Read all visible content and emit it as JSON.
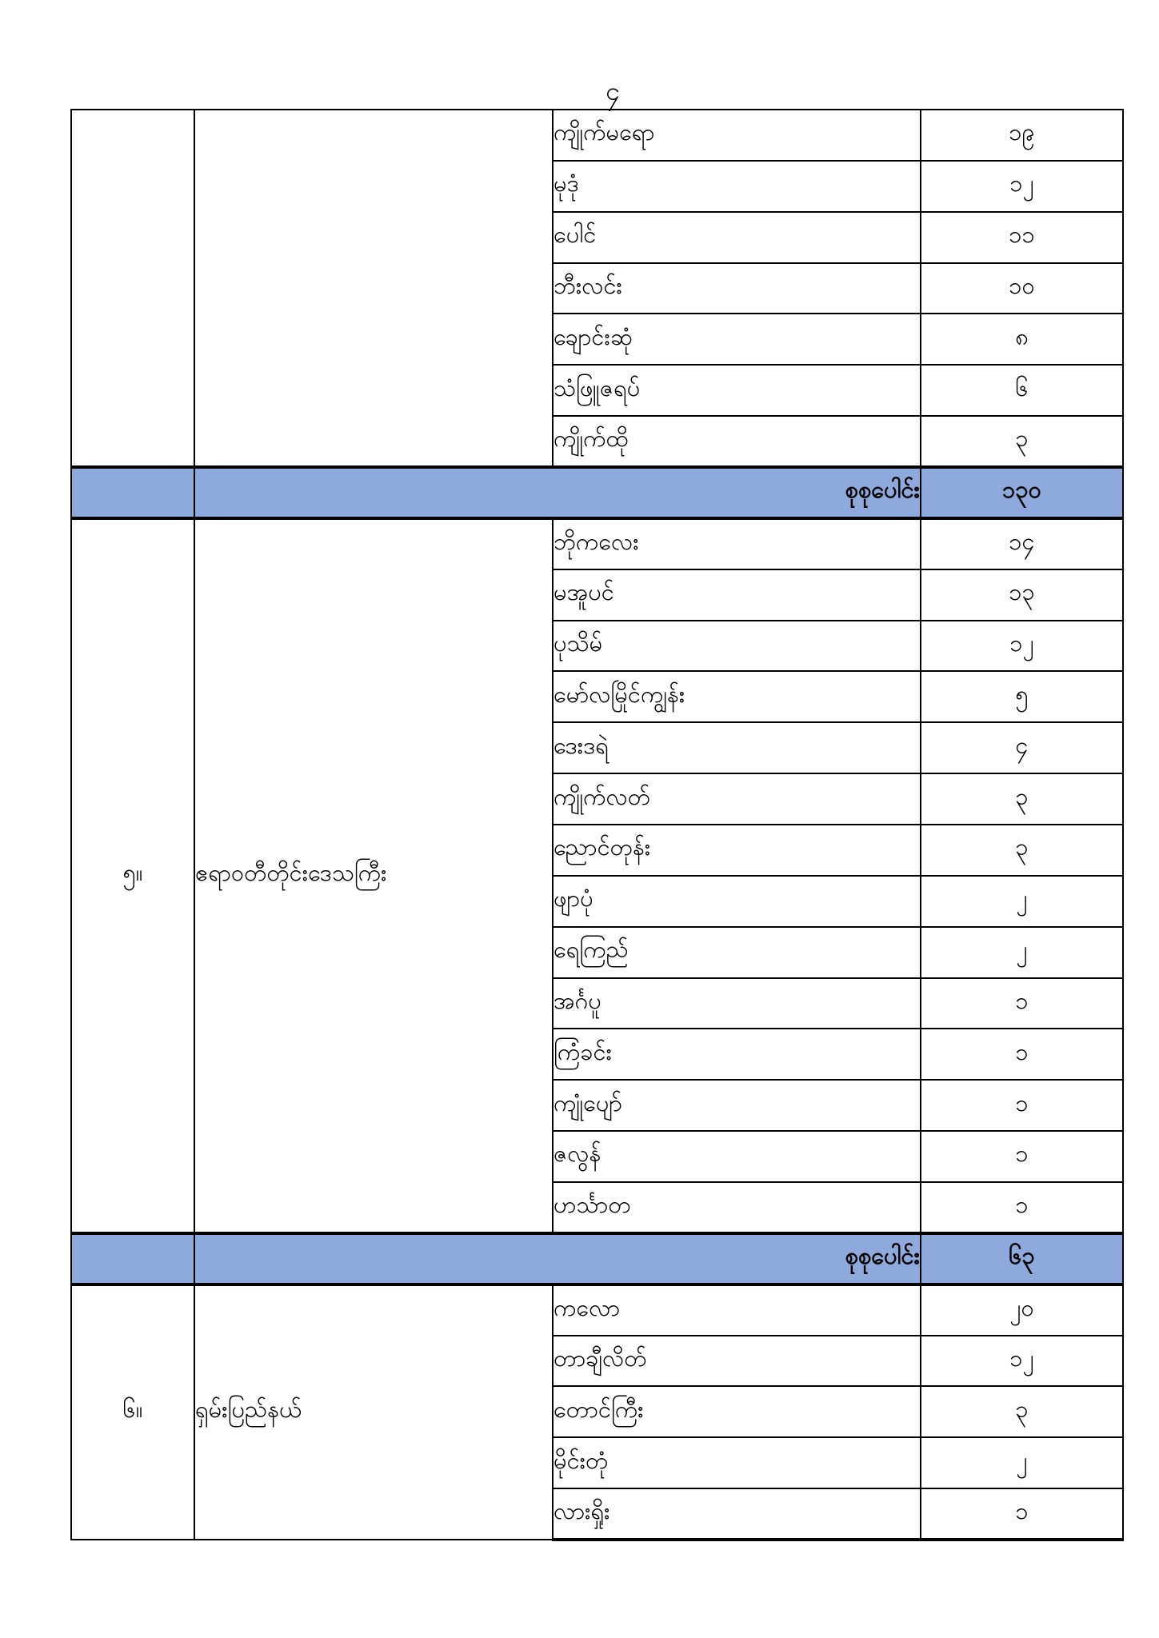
{
  "page": {
    "number": "၄"
  },
  "colors": {
    "total_row_bg": "#8EAADC",
    "border": "#000000",
    "text": "#000000",
    "page_bg": "#ffffff"
  },
  "table": {
    "total_label": "စုစုပေါင်း",
    "columns": [
      "section-number",
      "region-name",
      "township-name",
      "count"
    ],
    "sections": [
      {
        "no": "",
        "region": "",
        "rows": [
          {
            "township": "ကျိုက်မရော",
            "count": "၁၉"
          },
          {
            "township": "မုဒုံ",
            "count": "၁၂"
          },
          {
            "township": "ပေါင်",
            "count": "၁၁"
          },
          {
            "township": "ဘီးလင်း",
            "count": "၁၀"
          },
          {
            "township": "ချောင်းဆုံ",
            "count": "၈"
          },
          {
            "township": "သံဖြူဇရပ်",
            "count": "၆"
          },
          {
            "township": "ကျိုက်ထို",
            "count": "၃"
          }
        ],
        "total": "၁၃၀"
      },
      {
        "no": "၅။",
        "region": "ဧရာဝတီတိုင်းဒေသကြီး",
        "rows": [
          {
            "township": "ဘိုကလေး",
            "count": "၁၄"
          },
          {
            "township": "မအူပင်",
            "count": "၁၃"
          },
          {
            "township": "ပုသိမ်",
            "count": "၁၂"
          },
          {
            "township": "မော်လမြိုင်ကျွန်း",
            "count": "၅"
          },
          {
            "township": "ဒေးဒရဲ",
            "count": "၄"
          },
          {
            "township": "ကျိုက်လတ်",
            "count": "၃"
          },
          {
            "township": "ညောင်တုန်း",
            "count": "၃"
          },
          {
            "township": "ဖျာပုံ",
            "count": "၂"
          },
          {
            "township": "ရေကြည်",
            "count": "၂"
          },
          {
            "township": "အင်္ဂပူ",
            "count": "၁"
          },
          {
            "township": "ကြံခင်း",
            "count": "၁"
          },
          {
            "township": "ကျုံပျော်",
            "count": "၁"
          },
          {
            "township": "ဇလွန်",
            "count": "၁"
          },
          {
            "township": "ဟင်္သာတ",
            "count": "၁"
          }
        ],
        "total": "၆၃"
      },
      {
        "no": "၆။",
        "region": "ရှမ်းပြည်နယ်",
        "rows": [
          {
            "township": "ကလော",
            "count": "၂၀"
          },
          {
            "township": "တာချီလိတ်",
            "count": "၁၂"
          },
          {
            "township": "တောင်ကြီး",
            "count": "၃"
          },
          {
            "township": "မိုင်းတုံ",
            "count": "၂"
          },
          {
            "township": "လားရှိုး",
            "count": "၁"
          }
        ],
        "total": null
      }
    ]
  }
}
